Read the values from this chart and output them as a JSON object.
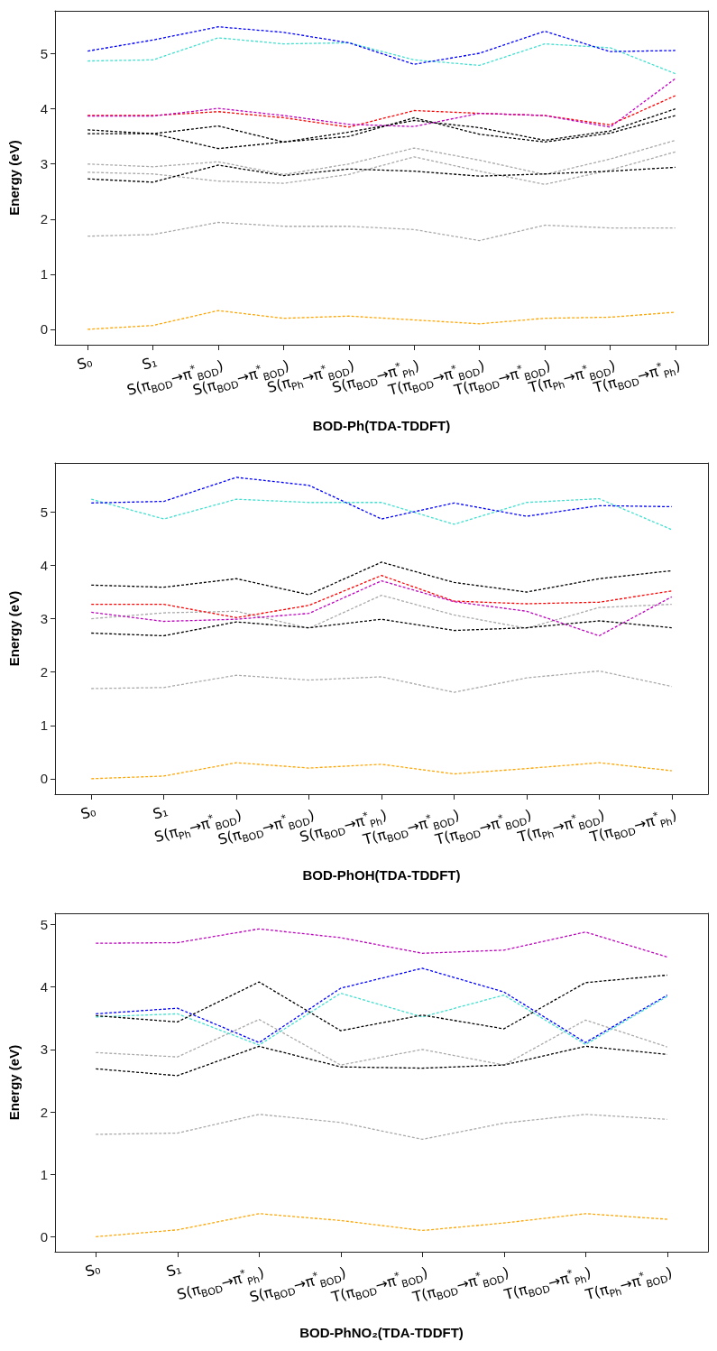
{
  "chart_data": [
    {
      "type": "line",
      "xlabel": "BOD-Ph(TDA-TDDFT)",
      "ylabel": "Energy (eV)",
      "ylim": [
        -0.28,
        5.78
      ],
      "yticks": [
        0,
        1,
        2,
        3,
        4,
        5
      ],
      "grid": false,
      "line_style": "dashed",
      "categories": [
        "S₀",
        "S₁",
        "S(π$_{BOD}$→π$^{*}$$_{BOD}$)",
        "S(π$_{BOD}$→π$^{*}$$_{BOD}$)",
        "S(π$_{Ph}$→π$^{*}$$_{BOD}$)",
        "S(π$_{BOD}$→π$^{*}$$_{Ph}$)",
        "T(π$_{BOD}$→π$^{*}$$_{BOD}$)",
        "T(π$_{BOD}$→π$^{*}$$_{BOD}$)",
        "T(π$_{Ph}$→π$^{*}$$_{BOD}$)",
        "T(π$_{BOD}$→π$^{*}$$_{Ph}$)"
      ],
      "series": [
        {
          "color": "#ffa500",
          "values": [
            0,
            0.07,
            0.34,
            0.2,
            0.24,
            0.17,
            0.1,
            0.2,
            0.22,
            0.31
          ]
        },
        {
          "color": "#a9a9a9",
          "values": [
            1.69,
            1.72,
            1.94,
            1.87,
            1.87,
            1.81,
            1.61,
            1.89,
            1.84,
            1.84
          ]
        },
        {
          "color": "#a9a9a9",
          "values": [
            2.85,
            2.82,
            2.69,
            2.65,
            2.81,
            3.13,
            2.87,
            2.63,
            2.89,
            3.22
          ]
        },
        {
          "color": "#a9a9a9",
          "values": [
            3.0,
            2.95,
            3.04,
            2.81,
            3.0,
            3.29,
            3.07,
            2.81,
            3.09,
            3.43
          ]
        },
        {
          "color": "#000000",
          "values": [
            2.73,
            2.67,
            2.98,
            2.79,
            2.91,
            2.87,
            2.78,
            2.82,
            2.87,
            2.94
          ]
        },
        {
          "color": "#000000",
          "values": [
            3.62,
            3.55,
            3.28,
            3.4,
            3.5,
            3.84,
            3.54,
            3.4,
            3.56,
            3.88
          ]
        },
        {
          "color": "#000000",
          "values": [
            3.55,
            3.55,
            3.69,
            3.4,
            3.58,
            3.79,
            3.66,
            3.43,
            3.6,
            4.0
          ]
        },
        {
          "color": "#ff0000",
          "values": [
            3.88,
            3.88,
            3.95,
            3.84,
            3.67,
            3.97,
            3.92,
            3.88,
            3.71,
            4.24
          ]
        },
        {
          "color": "#bf00bf",
          "values": [
            3.87,
            3.87,
            4.01,
            3.88,
            3.72,
            3.68,
            3.92,
            3.88,
            3.67,
            4.55
          ]
        },
        {
          "color": "#40e0d0",
          "values": [
            4.87,
            4.89,
            5.29,
            5.18,
            5.2,
            4.89,
            4.79,
            5.18,
            5.11,
            4.64
          ]
        },
        {
          "color": "#0000ff",
          "values": [
            5.05,
            5.25,
            5.49,
            5.39,
            5.2,
            4.81,
            5.01,
            5.41,
            5.04,
            5.06
          ]
        }
      ]
    },
    {
      "type": "line",
      "xlabel": "BOD-PhOH(TDA-TDDFT)",
      "ylabel": "Energy (eV)",
      "ylim": [
        -0.29,
        5.92
      ],
      "yticks": [
        0,
        1,
        2,
        3,
        4,
        5
      ],
      "grid": false,
      "line_style": "dashed",
      "categories": [
        "S₀",
        "S₁",
        "S(π$_{Ph}$→π$^{*}$$_{BOD}$)",
        "S(π$_{BOD}$→π$^{*}$$_{BOD}$)",
        "S(π$_{BOD}$→π$^{*}$$_{Ph}$)",
        "T(π$_{BOD}$→π$^{*}$$_{BOD}$)",
        "T(π$_{BOD}$→π$^{*}$$_{BOD}$)",
        "T(π$_{Ph}$→π$^{*}$$_{BOD}$)",
        "T(π$_{BOD}$→π$^{*}$$_{Ph}$)"
      ],
      "series": [
        {
          "color": "#ffa500",
          "values": [
            0,
            0.05,
            0.3,
            0.2,
            0.27,
            0.09,
            0.19,
            0.3,
            0.15
          ]
        },
        {
          "color": "#a9a9a9",
          "values": [
            1.69,
            1.71,
            1.94,
            1.85,
            1.91,
            1.62,
            1.89,
            2.02,
            1.73
          ]
        },
        {
          "color": "#a9a9a9",
          "values": [
            3.0,
            3.11,
            3.14,
            2.82,
            3.44,
            3.07,
            2.82,
            3.21,
            3.27
          ]
        },
        {
          "color": "#000000",
          "values": [
            2.73,
            2.68,
            2.94,
            2.83,
            2.99,
            2.78,
            2.83,
            2.96,
            2.83
          ]
        },
        {
          "color": "#000000",
          "values": [
            3.63,
            3.59,
            3.75,
            3.45,
            4.06,
            3.68,
            3.5,
            3.75,
            3.9
          ]
        },
        {
          "color": "#ff0000",
          "values": [
            3.27,
            3.27,
            3.02,
            3.25,
            3.81,
            3.33,
            3.28,
            3.31,
            3.52
          ]
        },
        {
          "color": "#bf00bf",
          "values": [
            3.12,
            2.95,
            2.99,
            3.1,
            3.71,
            3.32,
            3.14,
            2.68,
            3.41
          ]
        },
        {
          "color": "#40e0d0",
          "values": [
            5.24,
            4.87,
            5.24,
            5.18,
            5.18,
            4.77,
            5.18,
            5.25,
            4.67
          ]
        },
        {
          "color": "#0000ff",
          "values": [
            5.17,
            5.2,
            5.65,
            5.5,
            4.87,
            5.17,
            4.92,
            5.12,
            5.1
          ]
        }
      ]
    },
    {
      "type": "line",
      "xlabel": "BOD-PhNO₂(TDA-TDDFT)",
      "ylabel": "Energy (eV)",
      "ylim": [
        -0.24,
        5.18
      ],
      "yticks": [
        0,
        1,
        2,
        3,
        4,
        5
      ],
      "grid": false,
      "line_style": "dashed",
      "categories": [
        "S₀",
        "S₁",
        "S(π$_{BOD}$→π$^{*}$$_{Ph}$)",
        "S(π$_{BOD}$→π$^{*}$$_{BOD}$)",
        "T(π$_{BOD}$→π$^{*}$$_{BOD}$)",
        "T(π$_{BOD}$→π$^{*}$$_{BOD}$)",
        "T(π$_{BOD}$→π$^{*}$$_{Ph}$)",
        "T(π$_{Ph}$→π$^{*}$$_{BOD}$)"
      ],
      "series": [
        {
          "color": "#ffa500",
          "values": [
            0,
            0.11,
            0.37,
            0.26,
            0.1,
            0.22,
            0.37,
            0.28
          ]
        },
        {
          "color": "#a9a9a9",
          "values": [
            1.64,
            1.66,
            1.96,
            1.83,
            1.56,
            1.82,
            1.96,
            1.88
          ]
        },
        {
          "color": "#a9a9a9",
          "values": [
            2.95,
            2.88,
            3.48,
            2.75,
            3.0,
            2.75,
            3.47,
            3.04
          ]
        },
        {
          "color": "#000000",
          "values": [
            2.69,
            2.58,
            3.05,
            2.72,
            2.7,
            2.75,
            3.05,
            2.92
          ]
        },
        {
          "color": "#40e0d0",
          "values": [
            3.52,
            3.57,
            3.07,
            3.9,
            3.52,
            3.87,
            3.08,
            3.85
          ]
        },
        {
          "color": "#000000",
          "values": [
            3.54,
            3.44,
            4.08,
            3.3,
            3.55,
            3.33,
            4.07,
            4.19
          ]
        },
        {
          "color": "#0000ff",
          "values": [
            3.57,
            3.66,
            3.11,
            3.98,
            4.3,
            3.92,
            3.11,
            3.87
          ]
        },
        {
          "color": "#bf00bf",
          "values": [
            4.7,
            4.71,
            4.93,
            4.79,
            4.54,
            4.59,
            4.88,
            4.48
          ]
        }
      ]
    }
  ]
}
